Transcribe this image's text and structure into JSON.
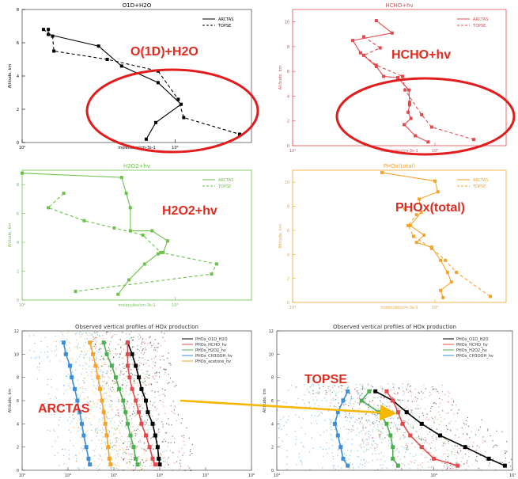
{
  "chart_data": [
    {
      "type": "line",
      "title": "O1D+H2O",
      "xlabel": "molecules/cm-3s-1",
      "ylabel": "Altitude, km",
      "color": "#000000",
      "xscale": "log",
      "xlim": [
        10000,
        10000000
      ],
      "ylim": [
        0,
        8
      ],
      "xticks": [
        "10⁴",
        "10⁶"
      ],
      "yticks": [
        "0",
        "2",
        "4",
        "6",
        "8"
      ],
      "legend": [
        "ARCTAS",
        "TOPSE"
      ],
      "legend_position": "top-right",
      "annotation": "O(1D)+H2O",
      "series": [
        {
          "name": "ARCTAS",
          "x": [
            22000,
            22000,
            100000,
            200000,
            600000,
            1200000,
            560000,
            420000
          ],
          "y": [
            6.8,
            6.5,
            5.8,
            4.6,
            3.6,
            2.3,
            1.2,
            0.2
          ]
        },
        {
          "name": "TOPSE",
          "x": [
            19000,
            25000,
            26000,
            130000,
            600000,
            1100000,
            1300000,
            7000000
          ],
          "y": [
            6.8,
            6.4,
            5.5,
            5.0,
            4.3,
            2.6,
            1.5,
            0.5
          ]
        }
      ]
    },
    {
      "type": "line",
      "title": "HCHO+hv",
      "xlabel": "molecules/cm-3s-1",
      "ylabel": "Altitude, km",
      "color": "#e5484d",
      "xscale": "log",
      "xlim": [
        10000,
        10000000
      ],
      "ylim": [
        0,
        11
      ],
      "xticks": [
        "10⁴",
        "10⁶"
      ],
      "yticks": [
        "0",
        "2",
        "4",
        "6",
        "8",
        "10"
      ],
      "legend": [
        "ARCTAS",
        "TOPSE"
      ],
      "legend_position": "top-right",
      "annotation": "HCHO+hv",
      "series": [
        {
          "name": "ARCTAS",
          "x": [
            150000,
            250000,
            70000,
            90000,
            150000,
            190000,
            300000,
            430000,
            440000,
            440000,
            420000,
            460000,
            370000,
            530000,
            800000
          ],
          "y": [
            10.1,
            9.1,
            8.5,
            7.5,
            6.4,
            5.6,
            5.5,
            4.5,
            3.5,
            3.3,
            2.7,
            2.2,
            1.7,
            0.8,
            0.3
          ]
        },
        {
          "name": "TOPSE",
          "x": [
            100000,
            170000,
            100000,
            150000,
            350000,
            380000,
            650000,
            900000,
            3500000
          ],
          "y": [
            8.8,
            7.9,
            7.3,
            6.5,
            5.6,
            4.5,
            2.5,
            1.5,
            0.5
          ]
        }
      ]
    },
    {
      "type": "line",
      "title": "H2O2+hv",
      "xlabel": "molecules/cm-3s-1",
      "ylabel": "Altitude, km",
      "color": "#6cc24a",
      "xscale": "log",
      "xlim": [
        10000,
        10000000
      ],
      "ylim": [
        0,
        9
      ],
      "xticks": [
        "10⁴",
        "10⁶"
      ],
      "yticks": [
        "0",
        "2",
        "4",
        "6",
        "8"
      ],
      "legend": [
        "ARCTAS",
        "TOPSE"
      ],
      "legend_position": "top-right",
      "annotation": "H2O2+hv",
      "series": [
        {
          "name": "ARCTAS",
          "x": [
            10000,
            200000,
            230000,
            260000,
            260000,
            500000,
            800000,
            700000,
            600000,
            400000,
            250000,
            180000
          ],
          "y": [
            8.8,
            8.5,
            7.4,
            6.4,
            4.8,
            4.8,
            4.1,
            3.3,
            3.2,
            2.5,
            1.4,
            0.4
          ]
        },
        {
          "name": "TOPSE",
          "x": [
            35000,
            22000,
            65000,
            160000,
            380000,
            650000,
            3500000,
            3000000,
            50000
          ],
          "y": [
            7.4,
            6.4,
            5.5,
            5.0,
            4.5,
            3.3,
            2.5,
            1.8,
            0.6
          ]
        }
      ]
    },
    {
      "type": "line",
      "title": "PHOx(total)",
      "xlabel": "molecules/cm-3s-1",
      "ylabel": "Altitude, km",
      "color": "#f5a32a",
      "xscale": "log",
      "xlim": [
        10000,
        10000000
      ],
      "ylim": [
        0,
        11
      ],
      "xticks": [
        "10⁴",
        "10⁶"
      ],
      "yticks": [
        "0",
        "2",
        "4",
        "6",
        "8",
        "10"
      ],
      "legend": [
        "ARCTAS",
        "TOPSE"
      ],
      "legend_position": "top-right",
      "annotation": "PHOx(total)",
      "series": [
        {
          "name": "ARCTAS",
          "x": [
            180000,
            1000000,
            1100000,
            600000,
            640000,
            450000,
            700000,
            550000,
            900000,
            1200000,
            1500000,
            1700000,
            1200000,
            1300000
          ],
          "y": [
            10.8,
            10.1,
            9.2,
            8.6,
            7.5,
            6.4,
            5.6,
            5.0,
            4.6,
            3.5,
            2.5,
            1.7,
            1.0,
            0.4
          ]
        },
        {
          "name": "TOPSE",
          "x": [
            380000,
            550000,
            420000,
            500000,
            900000,
            1400000,
            2000000,
            6000000
          ],
          "y": [
            7.8,
            7.3,
            6.4,
            5.5,
            4.5,
            3.5,
            2.5,
            0.5
          ]
        }
      ]
    },
    {
      "type": "scatter",
      "title": "Observed vertical profiles of HOx production",
      "xlabel": "",
      "ylabel": "Altitude, km",
      "xscale": "log",
      "xlim": [
        1000,
        100000000
      ],
      "ylim": [
        0,
        12
      ],
      "xticks": [
        "10³",
        "10⁴",
        "10⁵",
        "10⁶",
        "10⁷",
        "10⁸"
      ],
      "yticks": [
        "0",
        "2",
        "4",
        "6",
        "8",
        "10",
        "12"
      ],
      "legend": [
        "PHOx_O1D_H2O",
        "PHOx_HCHO_hv",
        "PHOx_H2O2_hv",
        "PHOx_CH3OOH_hv",
        "PHOx_acetone_hv"
      ],
      "legend_position": "top-right",
      "annotation": "ARCTAS",
      "series": [
        {
          "name": "PHOx_O1D_H2O",
          "color": "#000000",
          "x": [
            200000,
            250000,
            300000,
            350000,
            400000,
            500000,
            550000,
            700000,
            800000,
            900000,
            950000,
            1000000
          ],
          "y": [
            11,
            10,
            9,
            8,
            7,
            6,
            5,
            4,
            3,
            2,
            1,
            0.5
          ]
        },
        {
          "name": "PHOx_HCHO_hv",
          "color": "#e5484d",
          "x": [
            200000,
            200000,
            200000,
            220000,
            250000,
            300000,
            350000,
            400000,
            500000,
            600000,
            700000,
            800000
          ],
          "y": [
            11,
            10,
            9,
            8,
            7,
            6,
            5,
            4,
            3,
            2,
            1,
            0.5
          ]
        },
        {
          "name": "PHOx_H2O2_hv",
          "color": "#4caf50",
          "x": [
            60000,
            70000,
            90000,
            110000,
            130000,
            160000,
            180000,
            200000,
            230000,
            270000,
            300000,
            330000
          ],
          "y": [
            11,
            10,
            9,
            8,
            7,
            6,
            5,
            4,
            3,
            2,
            1,
            0.5
          ]
        },
        {
          "name": "PHOx_CH3OOH_hv",
          "color": "#3a8fd8",
          "x": [
            8000,
            9000,
            11000,
            12000,
            14000,
            16000,
            18000,
            20000,
            22000,
            25000,
            28000,
            30000
          ],
          "y": [
            11,
            10,
            9,
            8,
            7,
            6,
            5,
            4,
            3,
            2,
            1,
            0.5
          ]
        },
        {
          "name": "PHOx_acetone_hv",
          "color": "#f5a32a",
          "x": [
            30000,
            35000,
            40000,
            45000,
            50000,
            55000,
            60000,
            65000,
            70000,
            75000,
            80000,
            85000
          ],
          "y": [
            11,
            10,
            9,
            8,
            7,
            6,
            5,
            4,
            3,
            2,
            1,
            0.5
          ]
        }
      ]
    },
    {
      "type": "scatter",
      "title": "Observed vertical profiles of HOx production",
      "xlabel": "",
      "ylabel": "Altitude, km",
      "xscale": "log",
      "xlim": [
        10000,
        10000000
      ],
      "ylim": [
        0,
        12
      ],
      "xticks": [
        "10⁴",
        "10⁶",
        "10⁷"
      ],
      "yticks": [
        "0",
        "2",
        "4",
        "6",
        "8",
        "10",
        "12"
      ],
      "legend": [
        "PHOx_O1D_H2O",
        "PHOx_HCHO_hv",
        "PHOx_H2O2_hv",
        "PHOx_CH3OOH_hv"
      ],
      "legend_position": "top-right",
      "annotation": "TOPSE",
      "series": [
        {
          "name": "PHOx_O1D_H2O",
          "color": "#000000",
          "x": [
            180000,
            300000,
            450000,
            700000,
            1200000,
            2500000,
            5000000,
            8000000
          ],
          "y": [
            6.8,
            6,
            5,
            4,
            3,
            2,
            1,
            0.4
          ]
        },
        {
          "name": "PHOx_HCHO_hv",
          "color": "#e5484d",
          "x": [
            250000,
            300000,
            350000,
            400000,
            500000,
            700000,
            1000000,
            2000000
          ],
          "y": [
            6.8,
            6,
            5,
            4,
            3,
            2,
            1,
            0.4
          ]
        },
        {
          "name": "PHOx_H2O2_hv",
          "color": "#4caf50",
          "x": [
            150000,
            120000,
            200000,
            250000,
            280000,
            300000,
            300000,
            350000
          ],
          "y": [
            6.8,
            6,
            5,
            4,
            3,
            2,
            1,
            0.4
          ]
        },
        {
          "name": "PHOx_CH3OOH_hv",
          "color": "#3a8fd8",
          "x": [
            80000,
            70000,
            60000,
            55000,
            60000,
            65000,
            70000,
            80000
          ],
          "y": [
            6.8,
            6,
            5,
            4,
            3,
            2,
            1,
            0.4
          ]
        }
      ]
    }
  ]
}
